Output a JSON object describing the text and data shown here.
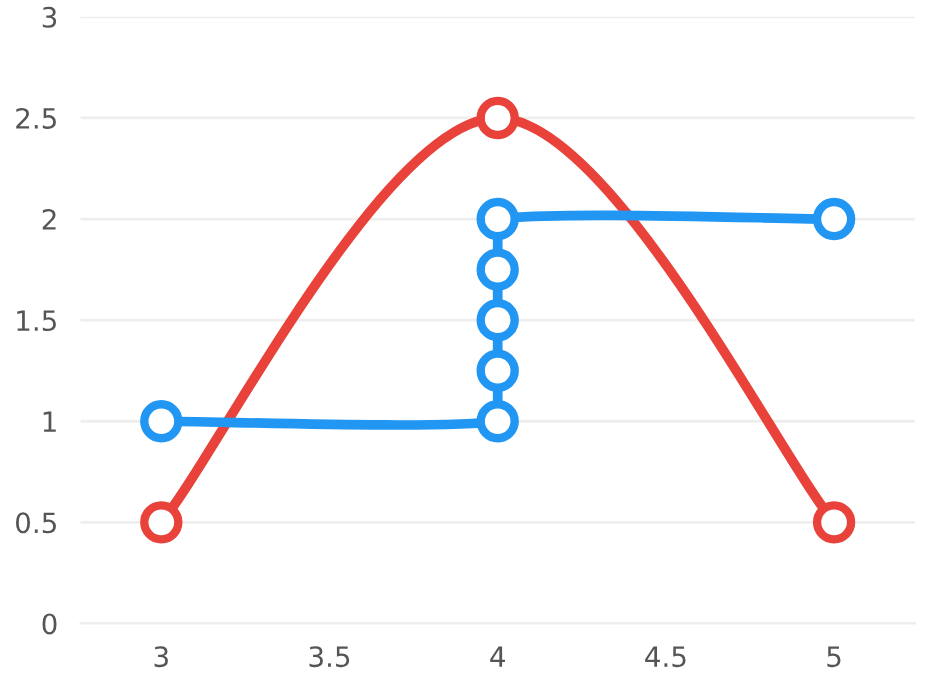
{
  "chart_data": {
    "type": "line",
    "marker": "circle",
    "grid": "y",
    "series": [
      {
        "color": "#e8423a",
        "x": [
          3,
          4,
          5
        ],
        "values": [
          0.5,
          2.5,
          0.5
        ]
      },
      {
        "color": "#2196f3",
        "x": [
          3,
          4,
          4,
          4,
          4,
          4,
          5
        ],
        "values": [
          1,
          1,
          1.25,
          1.5,
          1.75,
          2,
          2
        ]
      }
    ],
    "xlim": [
      2.76,
      5.24
    ],
    "xticks": [
      3,
      3.5,
      4,
      4.5,
      5
    ],
    "ylim": [
      0,
      3
    ],
    "yticks": [
      0,
      0.5,
      1,
      1.5,
      2,
      2.5,
      3
    ]
  }
}
